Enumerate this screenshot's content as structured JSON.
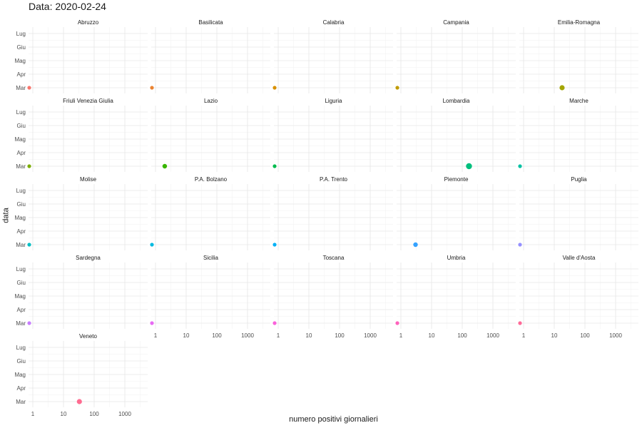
{
  "title": "Data: 2020-02-24",
  "chart_data": {
    "type": "scatter",
    "title": "Data: 2020-02-24",
    "xlabel": "numero positivi giornalieri",
    "ylabel": "data",
    "x_scale": "log10",
    "x_ticks": [
      "1",
      "10",
      "100",
      "1000"
    ],
    "y_ticks": [
      "Mar",
      "Apr",
      "Mag",
      "Giu",
      "Lug"
    ],
    "grid": true,
    "legend": "none",
    "panels": [
      {
        "region": "Abruzzo",
        "x": 0,
        "y": "Mar",
        "color": "#f8766d"
      },
      {
        "region": "Basilicata",
        "x": 0,
        "y": "Mar",
        "color": "#ea8331"
      },
      {
        "region": "Calabria",
        "x": 0,
        "y": "Mar",
        "color": "#d89000"
      },
      {
        "region": "Campania",
        "x": 0,
        "y": "Mar",
        "color": "#c09b00"
      },
      {
        "region": "Emilia-Romagna",
        "x": 18,
        "y": "Mar",
        "color": "#a3a500"
      },
      {
        "region": "Friuli Venezia Giulia",
        "x": 0,
        "y": "Mar",
        "color": "#7cae00"
      },
      {
        "region": "Lazio",
        "x": 2,
        "y": "Mar",
        "color": "#39b600"
      },
      {
        "region": "Liguria",
        "x": 0,
        "y": "Mar",
        "color": "#00bb4e"
      },
      {
        "region": "Lombardia",
        "x": 166,
        "y": "Mar",
        "color": "#00bf7d"
      },
      {
        "region": "Marche",
        "x": 0,
        "y": "Mar",
        "color": "#00c1a3"
      },
      {
        "region": "Molise",
        "x": 0,
        "y": "Mar",
        "color": "#00bfc4"
      },
      {
        "region": "P.A. Bolzano",
        "x": 0,
        "y": "Mar",
        "color": "#00bae0"
      },
      {
        "region": "P.A. Trento",
        "x": 0,
        "y": "Mar",
        "color": "#00b0f6"
      },
      {
        "region": "Piemonte",
        "x": 3,
        "y": "Mar",
        "color": "#35a2ff"
      },
      {
        "region": "Puglia",
        "x": 0,
        "y": "Mar",
        "color": "#9590ff"
      },
      {
        "region": "Sardegna",
        "x": 0,
        "y": "Mar",
        "color": "#c77cff"
      },
      {
        "region": "Sicilia",
        "x": 0,
        "y": "Mar",
        "color": "#e76bf3"
      },
      {
        "region": "Toscana",
        "x": 0,
        "y": "Mar",
        "color": "#fa62db"
      },
      {
        "region": "Umbria",
        "x": 0,
        "y": "Mar",
        "color": "#ff62bc"
      },
      {
        "region": "Valle d'Aosta",
        "x": 0,
        "y": "Mar",
        "color": "#ff6a98"
      },
      {
        "region": "Veneto",
        "x": 33,
        "y": "Mar",
        "color": "#ff6c91"
      }
    ]
  }
}
